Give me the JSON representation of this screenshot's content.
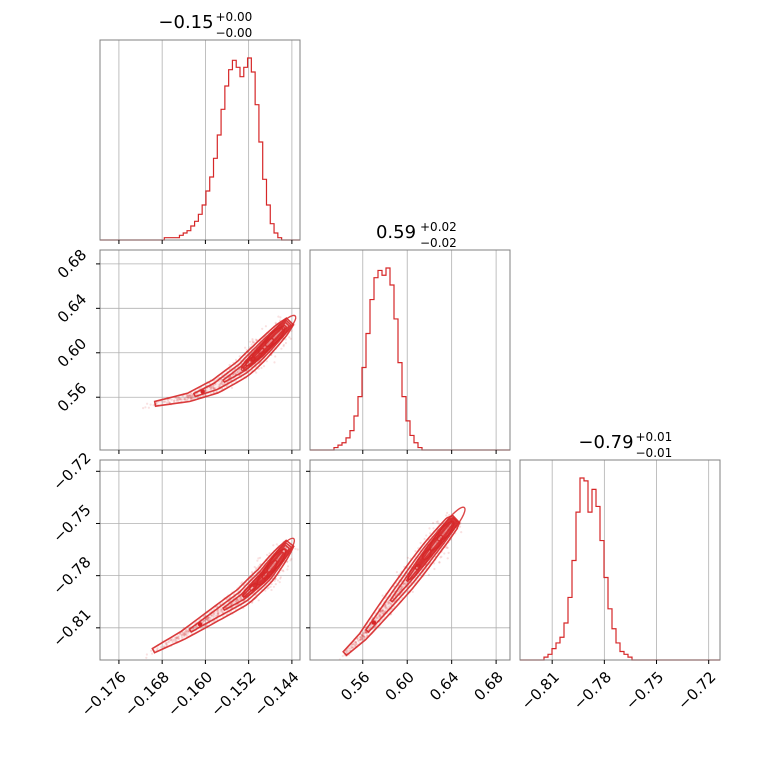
{
  "chart_data": {
    "type": "corner",
    "color": "#d62728",
    "grid": true,
    "parameters": [
      {
        "title_value": "−0.15",
        "title_plus": "+0.00",
        "title_minus": "−0.00",
        "range": [
          -0.1795,
          -0.1425
        ],
        "ticks": [
          -0.176,
          -0.168,
          -0.16,
          -0.152,
          -0.144
        ],
        "tick_labels": [
          "−0.176",
          "−0.168",
          "−0.160",
          "−0.152",
          "−0.144"
        ],
        "hist_step": 0.0007,
        "hist_counts": [
          0,
          0,
          0,
          0,
          0,
          0,
          0,
          0,
          0,
          0,
          0,
          0,
          0,
          0,
          0,
          0,
          0,
          1,
          1,
          1,
          1,
          2,
          3,
          4,
          6,
          8,
          11,
          15,
          21,
          27,
          35,
          45,
          56,
          66,
          73,
          77,
          74,
          70,
          74,
          78,
          72,
          58,
          42,
          26,
          15,
          7,
          3,
          1,
          0,
          0,
          0,
          0,
          0
        ]
      },
      {
        "title_value": "0.59",
        "title_plus": "+0.02",
        "title_minus": "−0.02",
        "range": [
          0.5125,
          0.6925
        ],
        "ticks": [
          0.56,
          0.6,
          0.64,
          0.68
        ],
        "tick_labels": [
          "0.56",
          "0.60",
          "0.64",
          "0.68"
        ],
        "hist_step": 0.0036,
        "hist_counts": [
          0,
          0,
          0,
          0,
          0,
          0,
          1,
          2,
          3,
          5,
          8,
          14,
          22,
          34,
          48,
          62,
          71,
          74,
          72,
          75,
          68,
          54,
          36,
          22,
          12,
          6,
          3,
          1,
          0,
          0,
          0,
          0,
          0,
          0,
          0,
          0,
          0,
          0,
          0,
          0,
          0,
          0,
          0,
          0,
          0,
          0,
          0,
          0,
          0,
          0
        ]
      },
      {
        "title_value": "−0.79",
        "title_plus": "+0.01",
        "title_minus": "−0.01",
        "range": [
          -0.8285,
          -0.7135
        ],
        "ticks": [
          -0.81,
          -0.78,
          -0.75,
          -0.72
        ],
        "tick_labels": [
          "−0.81",
          "−0.78",
          "−0.75",
          "−0.72"
        ],
        "hist_step": 0.0023,
        "hist_counts": [
          0,
          0,
          0,
          0,
          0,
          0,
          1,
          2,
          4,
          6,
          8,
          13,
          22,
          35,
          52,
          64,
          63,
          52,
          60,
          54,
          42,
          29,
          18,
          11,
          6,
          3,
          2,
          1,
          0,
          0,
          0,
          0,
          0,
          0,
          0,
          0,
          0,
          0,
          0,
          0,
          0,
          0,
          0,
          0,
          0,
          0,
          0,
          0,
          0,
          0
        ]
      }
    ],
    "correlation_pairs": [
      {
        "x": 0,
        "y": 1,
        "ridge": [
          [
            -0.172,
            0.5515
          ],
          [
            -0.163,
            0.56
          ],
          [
            -0.158,
            0.57
          ],
          [
            -0.153,
            0.586
          ],
          [
            -0.15,
            0.6
          ],
          [
            -0.146,
            0.62
          ],
          [
            -0.144,
            0.63
          ]
        ]
      },
      {
        "x": 0,
        "y": 2,
        "ridge": [
          [
            -0.172,
            -0.827
          ],
          [
            -0.164,
            -0.814
          ],
          [
            -0.158,
            -0.802
          ],
          [
            -0.153,
            -0.792
          ],
          [
            -0.149,
            -0.78
          ],
          [
            -0.146,
            -0.768
          ],
          [
            -0.144,
            -0.76
          ]
        ]
      },
      {
        "x": 1,
        "y": 2,
        "ridge": [
          [
            0.537,
            -0.829
          ],
          [
            0.56,
            -0.815
          ],
          [
            0.58,
            -0.799
          ],
          [
            0.6,
            -0.783
          ],
          [
            0.62,
            -0.766
          ],
          [
            0.64,
            -0.75
          ],
          [
            0.645,
            -0.747
          ]
        ]
      }
    ]
  }
}
